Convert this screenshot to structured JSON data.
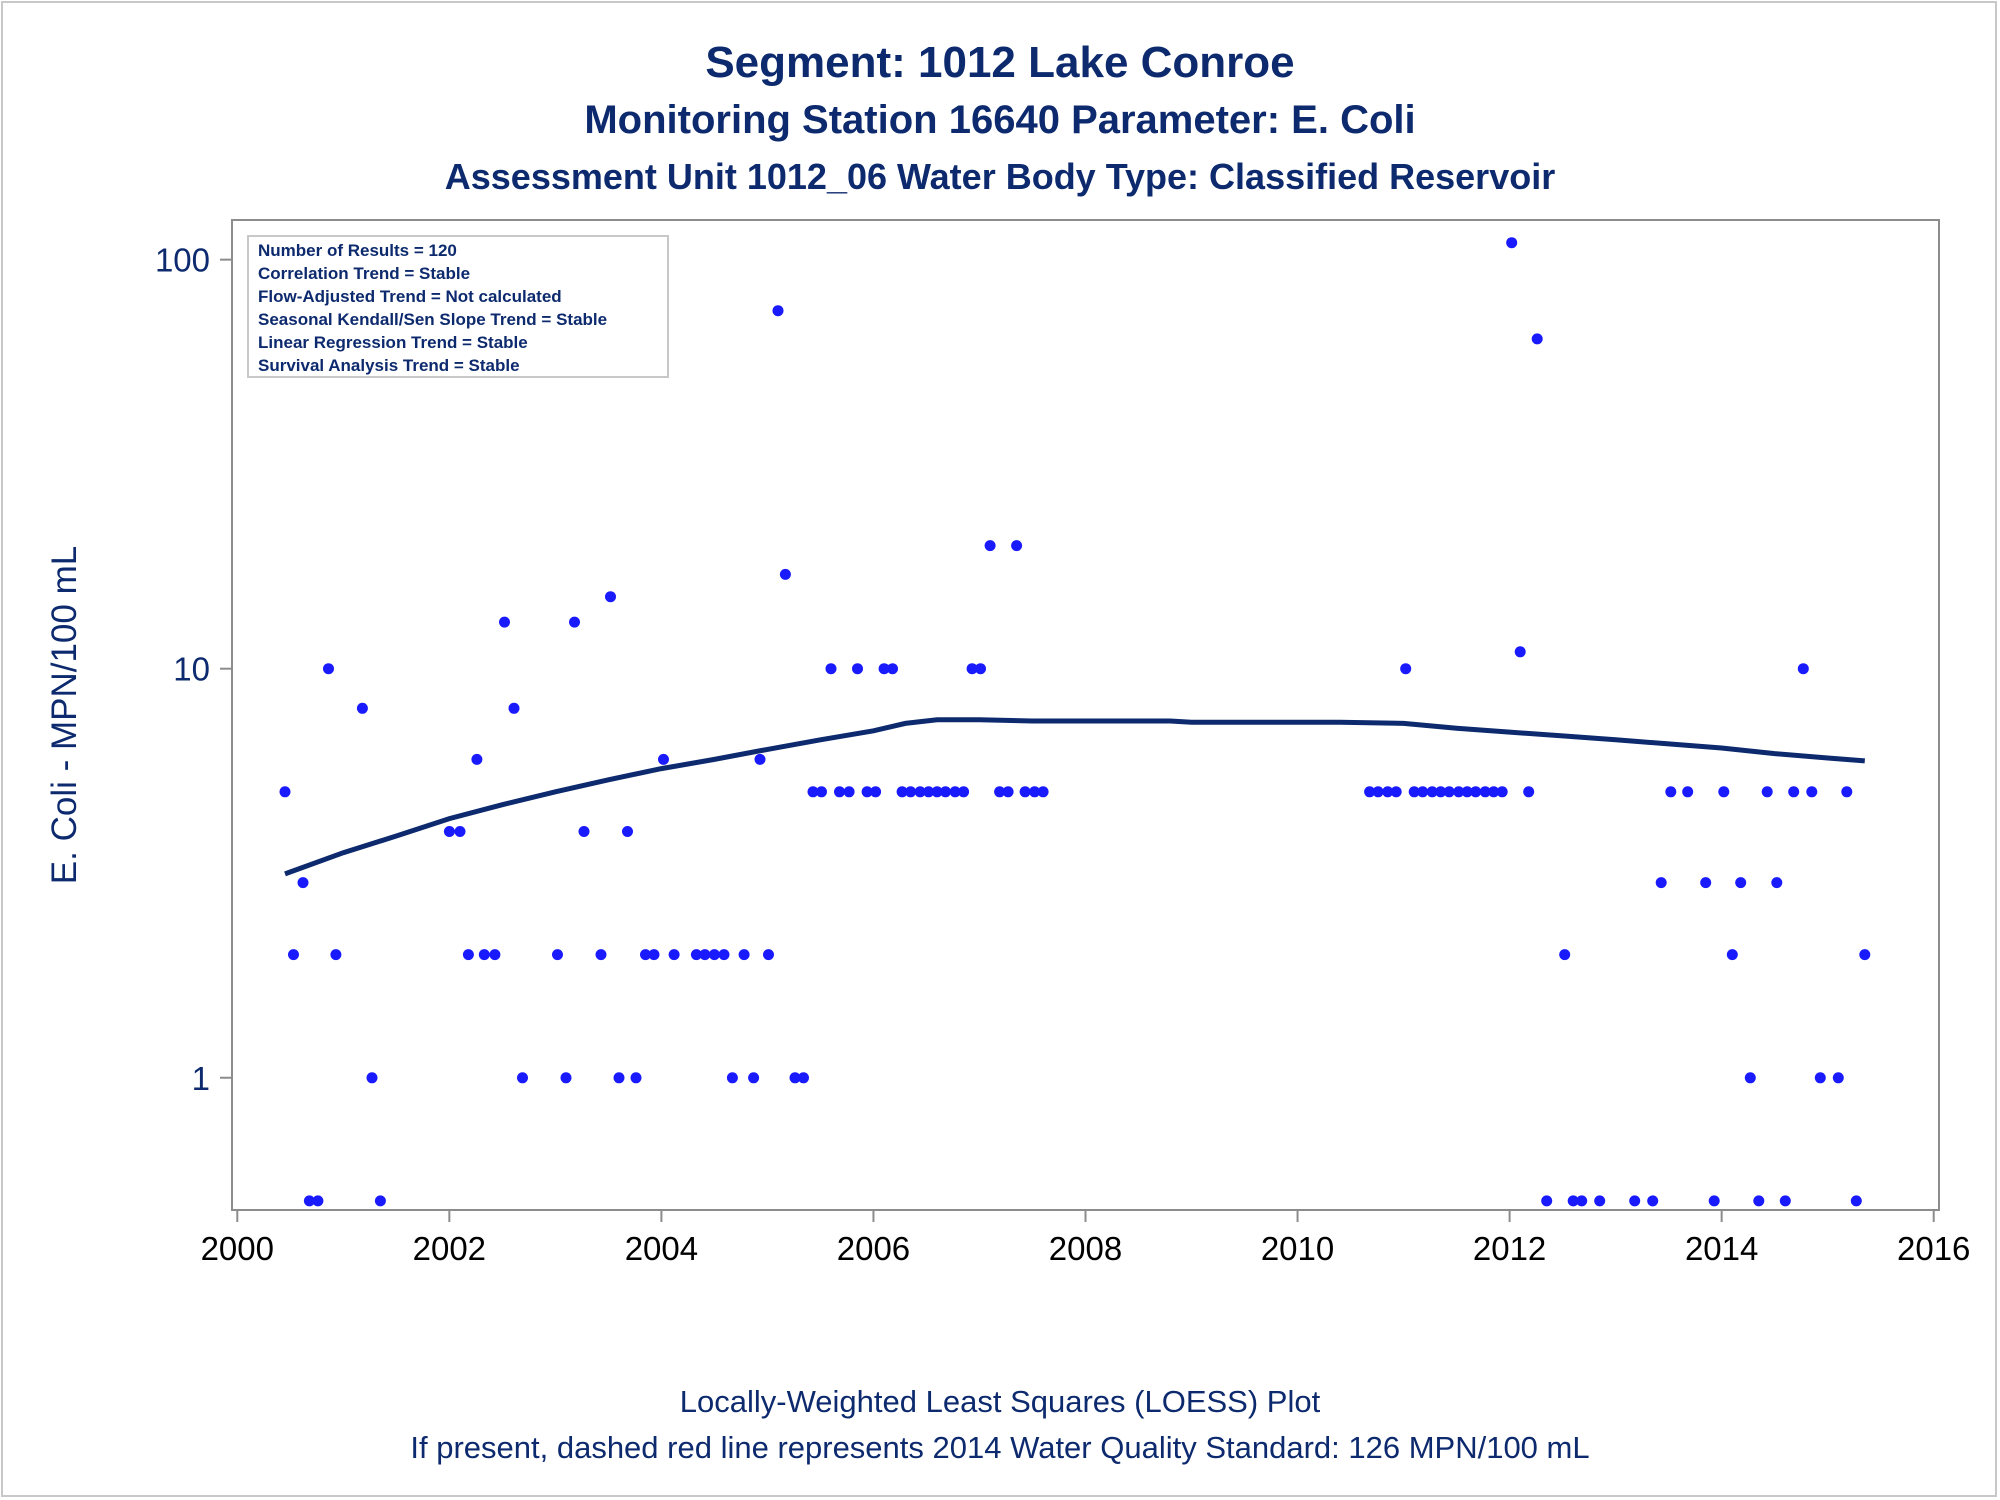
{
  "titles": {
    "line1": "Segment: 1012  Lake Conroe",
    "line2": "Monitoring Station 16640 Parameter: E. Coli",
    "line3": "Assessment Unit 1012_06   Water Body Type: Classified Reservoir"
  },
  "footnotes": {
    "line1": "Locally-Weighted Least Squares (LOESS) Plot",
    "line2": "If present, dashed red line represents 2014 Water Quality Standard: 126 MPN/100 mL"
  },
  "legend_box": [
    "Number of Results = 120",
    "Correlation Trend = Stable",
    "Flow-Adjusted Trend = Not calculated",
    "Seasonal Kendall/Sen Slope Trend = Stable",
    "Linear Regression Trend = Stable",
    "Survival Analysis Trend = Stable"
  ],
  "colors": {
    "text": "#0d2a6e",
    "points": "#1a1aff",
    "loess": "#0d2a6e",
    "axis": "#8c8c8c"
  },
  "chart_data": {
    "type": "scatter",
    "ylabel": "E. Coli - MPN/100 mL",
    "xlabel": "",
    "yscale": "log",
    "xlim": [
      1999.95,
      2016.05
    ],
    "ylim": [
      0.475,
      125
    ],
    "x_ticks": [
      2000,
      2002,
      2004,
      2006,
      2008,
      2010,
      2012,
      2014,
      2016
    ],
    "x_tick_labels": [
      "2000",
      "2002",
      "2004",
      "2006",
      "2008",
      "2010",
      "2012",
      "2014",
      "2016"
    ],
    "y_ticks": [
      1,
      10,
      100
    ],
    "y_tick_labels": [
      "1",
      "10",
      "100"
    ],
    "grid": false,
    "series": [
      {
        "kind": "points",
        "points": [
          [
            2000.45,
            5
          ],
          [
            2000.53,
            2
          ],
          [
            2000.62,
            3
          ],
          [
            2000.68,
            0.5
          ],
          [
            2000.76,
            0.5
          ],
          [
            2000.86,
            10
          ],
          [
            2000.93,
            2
          ],
          [
            2001.18,
            8
          ],
          [
            2001.27,
            1
          ],
          [
            2001.35,
            0.5
          ],
          [
            2002.0,
            4
          ],
          [
            2002.1,
            4
          ],
          [
            2002.18,
            2
          ],
          [
            2002.26,
            6
          ],
          [
            2002.33,
            2
          ],
          [
            2002.43,
            2
          ],
          [
            2002.52,
            13
          ],
          [
            2002.61,
            8
          ],
          [
            2002.69,
            1
          ],
          [
            2003.02,
            2
          ],
          [
            2003.1,
            1
          ],
          [
            2003.18,
            13
          ],
          [
            2003.27,
            4
          ],
          [
            2003.43,
            2
          ],
          [
            2003.52,
            15
          ],
          [
            2003.6,
            1
          ],
          [
            2003.68,
            4
          ],
          [
            2003.76,
            1
          ],
          [
            2003.85,
            2
          ],
          [
            2003.93,
            2
          ],
          [
            2004.02,
            6
          ],
          [
            2004.12,
            2
          ],
          [
            2004.33,
            2
          ],
          [
            2004.41,
            2
          ],
          [
            2004.5,
            2
          ],
          [
            2004.59,
            2
          ],
          [
            2004.67,
            1
          ],
          [
            2004.78,
            2
          ],
          [
            2004.87,
            1
          ],
          [
            2004.93,
            6
          ],
          [
            2005.01,
            2
          ],
          [
            2005.1,
            75
          ],
          [
            2005.17,
            17
          ],
          [
            2005.26,
            1
          ],
          [
            2005.34,
            1
          ],
          [
            2005.43,
            5
          ],
          [
            2005.51,
            5
          ],
          [
            2005.6,
            10
          ],
          [
            2005.68,
            5
          ],
          [
            2005.77,
            5
          ],
          [
            2005.85,
            10
          ],
          [
            2005.94,
            5
          ],
          [
            2006.02,
            5
          ],
          [
            2006.1,
            10
          ],
          [
            2006.18,
            10
          ],
          [
            2006.27,
            5
          ],
          [
            2006.35,
            5
          ],
          [
            2006.44,
            5
          ],
          [
            2006.52,
            5
          ],
          [
            2006.6,
            5
          ],
          [
            2006.68,
            5
          ],
          [
            2006.77,
            5
          ],
          [
            2006.85,
            5
          ],
          [
            2006.93,
            10
          ],
          [
            2007.01,
            10
          ],
          [
            2007.1,
            20
          ],
          [
            2007.19,
            5
          ],
          [
            2007.27,
            5
          ],
          [
            2007.35,
            20
          ],
          [
            2007.43,
            5
          ],
          [
            2007.52,
            5
          ],
          [
            2007.6,
            5
          ],
          [
            2010.68,
            5
          ],
          [
            2010.76,
            5
          ],
          [
            2010.85,
            5
          ],
          [
            2010.93,
            5
          ],
          [
            2011.02,
            10
          ],
          [
            2011.1,
            5
          ],
          [
            2011.18,
            5
          ],
          [
            2011.27,
            5
          ],
          [
            2011.35,
            5
          ],
          [
            2011.43,
            5
          ],
          [
            2011.52,
            5
          ],
          [
            2011.6,
            5
          ],
          [
            2011.68,
            5
          ],
          [
            2011.77,
            5
          ],
          [
            2011.85,
            5
          ],
          [
            2011.93,
            5
          ],
          [
            2012.02,
            110
          ],
          [
            2012.1,
            11
          ],
          [
            2012.18,
            5
          ],
          [
            2012.26,
            64
          ],
          [
            2012.35,
            0.5
          ],
          [
            2012.52,
            2
          ],
          [
            2012.6,
            0.5
          ],
          [
            2012.68,
            0.5
          ],
          [
            2012.85,
            0.5
          ],
          [
            2013.18,
            0.5
          ],
          [
            2013.35,
            0.5
          ],
          [
            2013.43,
            3
          ],
          [
            2013.52,
            5
          ],
          [
            2013.68,
            5
          ],
          [
            2013.85,
            3
          ],
          [
            2013.93,
            0.5
          ],
          [
            2014.02,
            5
          ],
          [
            2014.1,
            2
          ],
          [
            2014.18,
            3
          ],
          [
            2014.27,
            1
          ],
          [
            2014.35,
            0.5
          ],
          [
            2014.43,
            5
          ],
          [
            2014.52,
            3
          ],
          [
            2014.6,
            0.5
          ],
          [
            2014.68,
            5
          ],
          [
            2014.77,
            10
          ],
          [
            2014.85,
            5
          ],
          [
            2014.93,
            1
          ],
          [
            2015.1,
            1
          ],
          [
            2015.18,
            5
          ],
          [
            2015.27,
            0.5
          ],
          [
            2015.35,
            2
          ]
        ]
      },
      {
        "kind": "loess",
        "points": [
          [
            2000.45,
            3.15
          ],
          [
            2001.0,
            3.55
          ],
          [
            2001.5,
            3.9
          ],
          [
            2002.0,
            4.3
          ],
          [
            2002.5,
            4.65
          ],
          [
            2003.0,
            5.0
          ],
          [
            2003.5,
            5.35
          ],
          [
            2004.0,
            5.7
          ],
          [
            2004.5,
            6.0
          ],
          [
            2005.0,
            6.35
          ],
          [
            2005.5,
            6.7
          ],
          [
            2006.0,
            7.05
          ],
          [
            2006.3,
            7.35
          ],
          [
            2006.6,
            7.5
          ],
          [
            2007.0,
            7.5
          ],
          [
            2007.5,
            7.45
          ],
          [
            2008.0,
            7.45
          ],
          [
            2008.8,
            7.45
          ],
          [
            2009.0,
            7.4
          ],
          [
            2010.0,
            7.4
          ],
          [
            2010.4,
            7.4
          ],
          [
            2011.0,
            7.35
          ],
          [
            2011.5,
            7.15
          ],
          [
            2012.0,
            7.0
          ],
          [
            2012.5,
            6.85
          ],
          [
            2013.0,
            6.7
          ],
          [
            2013.5,
            6.55
          ],
          [
            2014.0,
            6.4
          ],
          [
            2014.5,
            6.2
          ],
          [
            2015.0,
            6.05
          ],
          [
            2015.35,
            5.95
          ]
        ]
      }
    ]
  }
}
